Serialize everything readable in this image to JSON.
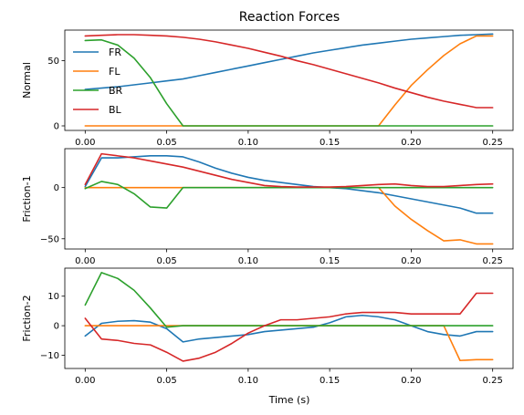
{
  "figure": {
    "title": "Reaction Forces",
    "xlabel": "Time (s)"
  },
  "colors": {
    "FR": "#1f77b4",
    "FL": "#ff7f0e",
    "BR": "#2ca02c",
    "BL": "#d62728"
  },
  "chart_data": [
    {
      "type": "line",
      "title": "Reaction Forces",
      "xlabel": "",
      "ylabel": "Normal",
      "xlim": [
        -0.0125,
        0.2625
      ],
      "ylim": [
        -3.5,
        73.5
      ],
      "xticks": [
        0.0,
        0.05,
        0.1,
        0.15,
        0.2,
        0.25
      ],
      "xtick_labels": [
        "0.00",
        "0.05",
        "0.10",
        "0.15",
        "0.20",
        "0.25"
      ],
      "yticks": [
        0,
        50
      ],
      "ytick_labels": [
        "0",
        "50"
      ],
      "grid": false,
      "legend": "upper-left",
      "x": [
        0.0,
        0.01,
        0.02,
        0.03,
        0.04,
        0.05,
        0.06,
        0.07,
        0.08,
        0.09,
        0.1,
        0.11,
        0.12,
        0.13,
        0.14,
        0.15,
        0.16,
        0.17,
        0.18,
        0.19,
        0.2,
        0.21,
        0.22,
        0.23,
        0.24,
        0.25
      ],
      "series": [
        {
          "name": "FR",
          "values": [
            28.0,
            29.0,
            30.0,
            31.5,
            33.0,
            34.5,
            36.0,
            38.5,
            41.0,
            43.5,
            46.0,
            48.5,
            51.0,
            53.5,
            56.0,
            58.0,
            60.0,
            62.0,
            63.5,
            65.0,
            66.5,
            67.5,
            68.5,
            69.5,
            70.0,
            70.5
          ]
        },
        {
          "name": "FL",
          "values": [
            0,
            0,
            0,
            0,
            0,
            0,
            0,
            0,
            0,
            0,
            0,
            0,
            0,
            0,
            0,
            0,
            0,
            0,
            0,
            16.0,
            31.0,
            43.0,
            54.0,
            63.0,
            69.0,
            69.0
          ]
        },
        {
          "name": "BR",
          "values": [
            65.5,
            66.0,
            62.0,
            52.0,
            37.0,
            17.0,
            0,
            0,
            0,
            0,
            0,
            0,
            0,
            0,
            0,
            0,
            0,
            0,
            0,
            0,
            0,
            0,
            0,
            0,
            0,
            0
          ]
        },
        {
          "name": "BL",
          "values": [
            69.0,
            69.5,
            70.0,
            70.0,
            69.5,
            69.0,
            68.0,
            66.5,
            64.5,
            62.0,
            59.5,
            56.5,
            53.5,
            50.0,
            47.0,
            43.5,
            40.0,
            36.5,
            33.0,
            29.0,
            25.5,
            22.0,
            19.0,
            16.5,
            14.0,
            14.0
          ]
        }
      ]
    },
    {
      "type": "line",
      "title": "",
      "xlabel": "",
      "ylabel": "Friction-1",
      "xlim": [
        -0.0125,
        0.2625
      ],
      "ylim": [
        -60,
        38
      ],
      "xticks": [
        0.0,
        0.05,
        0.1,
        0.15,
        0.2,
        0.25
      ],
      "xtick_labels": [
        "0.00",
        "0.05",
        "0.10",
        "0.15",
        "0.20",
        "0.25"
      ],
      "yticks": [
        -50,
        0
      ],
      "ytick_labels": [
        "−50",
        "0"
      ],
      "grid": false,
      "x": [
        0.0,
        0.01,
        0.02,
        0.03,
        0.04,
        0.05,
        0.06,
        0.07,
        0.08,
        0.09,
        0.1,
        0.11,
        0.12,
        0.13,
        0.14,
        0.15,
        0.16,
        0.17,
        0.18,
        0.19,
        0.2,
        0.21,
        0.22,
        0.23,
        0.24,
        0.25
      ],
      "series": [
        {
          "name": "FR",
          "values": [
            1.0,
            29.0,
            29.0,
            30.0,
            31.0,
            31.0,
            30.0,
            25.0,
            19.0,
            14.0,
            10.0,
            7.0,
            5.0,
            3.0,
            1.0,
            0.0,
            -1.0,
            -3.0,
            -5.0,
            -8.0,
            -11.0,
            -14.0,
            -17.0,
            -20.0,
            -25.0,
            -25.0
          ]
        },
        {
          "name": "FL",
          "values": [
            0,
            0,
            0,
            0,
            0,
            0,
            0,
            0,
            0,
            0,
            0,
            0,
            0,
            0,
            0,
            0,
            0,
            0,
            0,
            -18.0,
            -31.0,
            -42.0,
            -52.0,
            -51.0,
            -55.0,
            -55.0
          ]
        },
        {
          "name": "BR",
          "values": [
            -1.0,
            6.0,
            3.0,
            -6.0,
            -19.0,
            -20.0,
            0,
            0,
            0,
            0,
            0,
            0,
            0,
            0,
            0,
            0,
            0,
            0,
            0,
            0,
            0,
            0,
            0,
            0,
            0,
            0
          ]
        },
        {
          "name": "BL",
          "values": [
            3.0,
            33.0,
            31.0,
            29.0,
            26.0,
            23.0,
            20.0,
            16.0,
            12.0,
            8.0,
            5.0,
            2.0,
            1.0,
            0.5,
            0.5,
            0.5,
            1.0,
            2.0,
            3.0,
            3.5,
            2.0,
            1.0,
            1.0,
            2.0,
            3.0,
            3.5
          ]
        }
      ]
    },
    {
      "type": "line",
      "title": "",
      "xlabel": "Time (s)",
      "ylabel": "Friction-2",
      "xlim": [
        -0.0125,
        0.2625
      ],
      "ylim": [
        -14.5,
        19.5
      ],
      "xticks": [
        0.0,
        0.05,
        0.1,
        0.15,
        0.2,
        0.25
      ],
      "xtick_labels": [
        "0.00",
        "0.05",
        "0.10",
        "0.15",
        "0.20",
        "0.25"
      ],
      "yticks": [
        -10,
        0,
        10
      ],
      "ytick_labels": [
        "−10",
        "0",
        "10"
      ],
      "grid": false,
      "x": [
        0.0,
        0.01,
        0.02,
        0.03,
        0.04,
        0.05,
        0.06,
        0.07,
        0.08,
        0.09,
        0.1,
        0.11,
        0.12,
        0.13,
        0.14,
        0.15,
        0.16,
        0.17,
        0.18,
        0.19,
        0.2,
        0.21,
        0.22,
        0.23,
        0.24,
        0.25
      ],
      "series": [
        {
          "name": "FR",
          "values": [
            -3.5,
            0.8,
            1.5,
            1.7,
            1.2,
            -1.0,
            -5.5,
            -4.5,
            -4.0,
            -3.5,
            -3.0,
            -2.0,
            -1.5,
            -1.0,
            -0.5,
            1.0,
            3.0,
            3.5,
            3.0,
            2.0,
            0,
            -2.0,
            -3.0,
            -3.5,
            -2.0,
            -2.0
          ]
        },
        {
          "name": "FL",
          "values": [
            0,
            0,
            0,
            0,
            0,
            0,
            0,
            0,
            0,
            0,
            0,
            0,
            0,
            0,
            0,
            0,
            0,
            0,
            0,
            0,
            0,
            0,
            0,
            -11.8,
            -11.5,
            -11.5
          ]
        },
        {
          "name": "BR",
          "values": [
            7.0,
            18.0,
            16.0,
            12.0,
            6.0,
            -0.5,
            0,
            0,
            0,
            0,
            0,
            0,
            0,
            0,
            0,
            0,
            0,
            0,
            0,
            0,
            0,
            0,
            0,
            0,
            0,
            0
          ]
        },
        {
          "name": "BL",
          "values": [
            2.5,
            -4.5,
            -5.0,
            -6.0,
            -6.5,
            -9.0,
            -12.0,
            -11.0,
            -9.0,
            -6.0,
            -2.5,
            0,
            2.0,
            2.0,
            2.5,
            3.0,
            4.0,
            4.5,
            4.5,
            4.5,
            4.0,
            4.0,
            4.0,
            4.0,
            11.0,
            11.0
          ]
        }
      ]
    }
  ]
}
